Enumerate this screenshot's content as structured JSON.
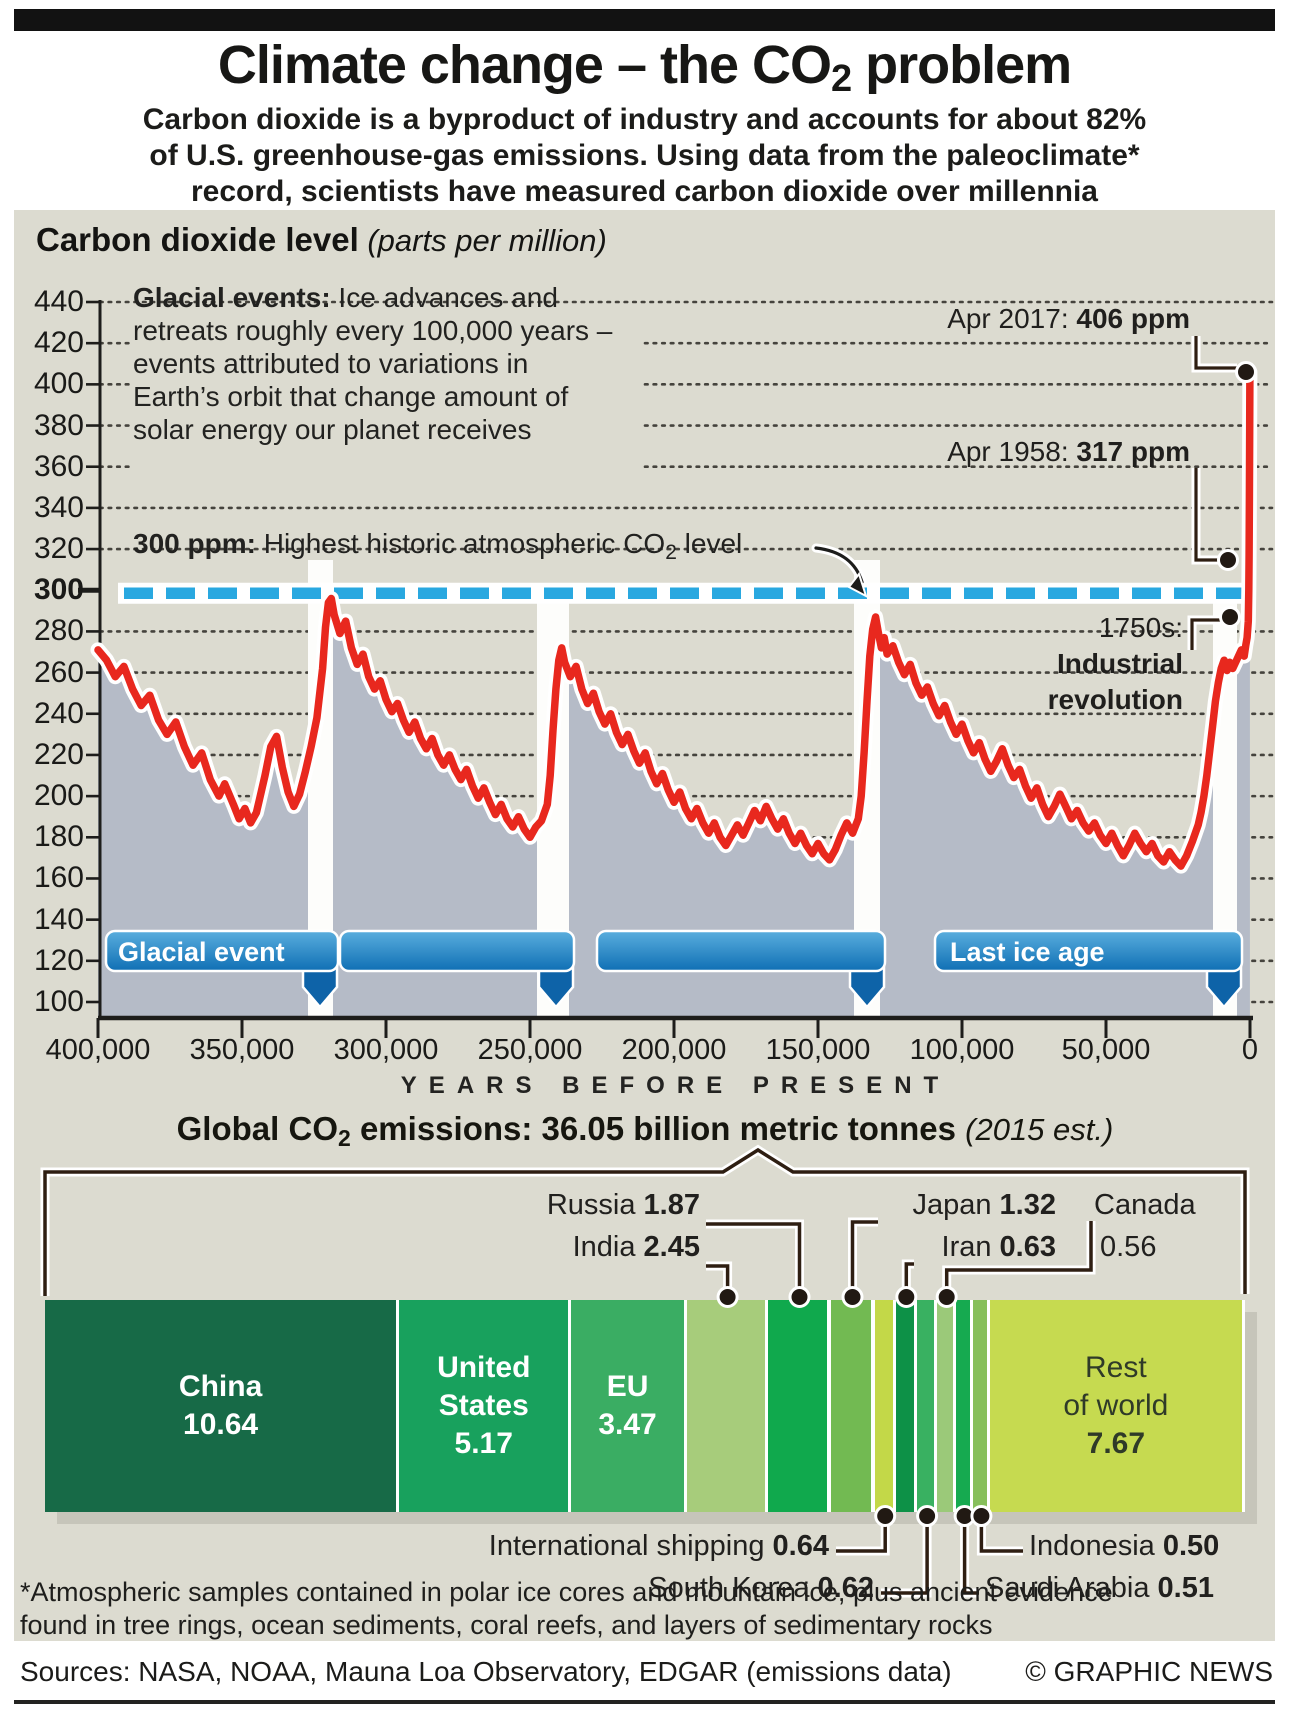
{
  "header": {
    "title_pre": "Climate change – the CO",
    "title_sub": "2",
    "title_post": " problem",
    "subtitle_lines": [
      "Carbon dioxide is a byproduct of industry and accounts for about 82%",
      "of U.S. greenhouse-gas emissions. Using data from the paleoclimate*",
      "record, scientists have measured carbon dioxide over millennia"
    ]
  },
  "co2chart": {
    "heading": "Carbon dioxide level",
    "heading_note": " (parts per million)",
    "glacial_note_bold": "Glacial events:",
    "glacial_note_line1_rest": " Ice advances and",
    "glacial_note_lines": [
      "retreats roughly every 100,000 years –",
      "events attributed to variations in",
      "Earth’s orbit that change amount of",
      "solar energy our planet receives"
    ],
    "limit_bold": "300 ppm:",
    "limit_mid": " Highest historic atmospheric CO",
    "limit_sub": "2",
    "limit_post": " level",
    "apr2017_label": "Apr 2017: ",
    "apr2017_value": "406 ppm",
    "apr1958_label": "Apr 1958: ",
    "apr1958_value": "317 ppm",
    "industrial_line1": "1750s:",
    "industrial_line2": "Industrial",
    "industrial_line3": "revolution",
    "x_axis_label": "YEARS BEFORE PRESENT"
  },
  "emissions": {
    "heading_pre": "Global CO",
    "heading_sub": "2",
    "heading_post": " emissions: 36.05 billion metric tonnes ",
    "heading_note": "(2015 est.)"
  },
  "footnote_lines": [
    "*Atmospheric samples contained in polar ice cores and mountain ice, plus ancient evidence",
    "found in tree rings, ocean sediments, coral reefs, and layers of sedimentary rocks"
  ],
  "footer": {
    "sources": "Sources: NASA, NOAA, Mauna Loa Observatory, EDGAR (emissions data)",
    "credit": "© GRAPHIC NEWS"
  },
  "chart_data": [
    {
      "type": "line",
      "title": "Carbon dioxide level (parts per million)",
      "xlabel": "YEARS BEFORE PRESENT",
      "ylabel": "CO2 parts per million",
      "x_range_years_before_present": [
        400000,
        0
      ],
      "ylim": [
        100,
        440
      ],
      "y_ticks": [
        440,
        420,
        400,
        380,
        360,
        340,
        320,
        300,
        280,
        260,
        240,
        220,
        200,
        180,
        160,
        140,
        120,
        100
      ],
      "x_ticks": [
        "400,000",
        "350,000",
        "300,000",
        "250,000",
        "200,000",
        "150,000",
        "100,000",
        "50,000",
        "0"
      ],
      "grid": "dotted horizontal",
      "reference_line": {
        "value": 300,
        "label": "300 ppm: Highest historic atmospheric CO2 level",
        "color": "#29a8e0"
      },
      "annotations": [
        {
          "label": "Apr 2017",
          "value_ppm": 406
        },
        {
          "label": "Apr 1958",
          "value_ppm": 317
        },
        {
          "label": "1750s: Industrial revolution",
          "value_ppm": 285
        }
      ],
      "era_banners": [
        {
          "label": "Glacial event"
        },
        {
          "label": ""
        },
        {
          "label": ""
        },
        {
          "label": "Last ice age"
        }
      ],
      "series_name": "CO2 level (ppm) vs thousands of years before present",
      "points": [
        [
          400,
          271
        ],
        [
          397,
          266
        ],
        [
          394,
          258
        ],
        [
          391,
          263
        ],
        [
          388,
          252
        ],
        [
          385,
          244
        ],
        [
          382,
          249
        ],
        [
          379,
          237
        ],
        [
          376,
          230
        ],
        [
          373,
          236
        ],
        [
          370,
          224
        ],
        [
          367,
          215
        ],
        [
          364,
          221
        ],
        [
          361,
          208
        ],
        [
          358,
          200
        ],
        [
          356,
          206
        ],
        [
          353,
          196
        ],
        [
          351,
          189
        ],
        [
          349,
          194
        ],
        [
          347,
          187
        ],
        [
          345,
          192
        ],
        [
          344,
          198
        ],
        [
          342,
          210
        ],
        [
          340,
          224
        ],
        [
          338,
          229
        ],
        [
          336,
          214
        ],
        [
          334,
          202
        ],
        [
          332,
          195
        ],
        [
          330,
          201
        ],
        [
          328,
          212
        ],
        [
          326,
          224
        ],
        [
          324,
          238
        ],
        [
          322,
          262
        ],
        [
          321,
          282
        ],
        [
          320,
          294
        ],
        [
          319,
          296
        ],
        [
          318,
          288
        ],
        [
          316,
          279
        ],
        [
          314,
          285
        ],
        [
          312,
          272
        ],
        [
          310,
          264
        ],
        [
          308,
          269
        ],
        [
          306,
          258
        ],
        [
          304,
          252
        ],
        [
          302,
          256
        ],
        [
          300,
          247
        ],
        [
          298,
          241
        ],
        [
          296,
          245
        ],
        [
          294,
          237
        ],
        [
          292,
          231
        ],
        [
          290,
          236
        ],
        [
          288,
          228
        ],
        [
          286,
          223
        ],
        [
          284,
          228
        ],
        [
          282,
          220
        ],
        [
          280,
          215
        ],
        [
          278,
          220
        ],
        [
          276,
          213
        ],
        [
          274,
          208
        ],
        [
          272,
          213
        ],
        [
          270,
          205
        ],
        [
          268,
          199
        ],
        [
          266,
          204
        ],
        [
          264,
          197
        ],
        [
          262,
          191
        ],
        [
          260,
          196
        ],
        [
          258,
          189
        ],
        [
          256,
          185
        ],
        [
          254,
          190
        ],
        [
          252,
          184
        ],
        [
          250,
          180
        ],
        [
          248,
          185
        ],
        [
          246,
          188
        ],
        [
          244,
          196
        ],
        [
          243,
          210
        ],
        [
          242,
          232
        ],
        [
          241,
          252
        ],
        [
          240,
          266
        ],
        [
          239,
          272
        ],
        [
          238,
          265
        ],
        [
          236,
          258
        ],
        [
          234,
          263
        ],
        [
          232,
          252
        ],
        [
          230,
          245
        ],
        [
          228,
          250
        ],
        [
          226,
          241
        ],
        [
          224,
          235
        ],
        [
          222,
          240
        ],
        [
          220,
          231
        ],
        [
          218,
          225
        ],
        [
          216,
          230
        ],
        [
          214,
          222
        ],
        [
          212,
          216
        ],
        [
          210,
          221
        ],
        [
          208,
          212
        ],
        [
          206,
          206
        ],
        [
          204,
          211
        ],
        [
          202,
          203
        ],
        [
          200,
          197
        ],
        [
          198,
          202
        ],
        [
          196,
          194
        ],
        [
          194,
          189
        ],
        [
          192,
          194
        ],
        [
          190,
          187
        ],
        [
          188,
          182
        ],
        [
          186,
          187
        ],
        [
          184,
          180
        ],
        [
          182,
          176
        ],
        [
          180,
          181
        ],
        [
          178,
          186
        ],
        [
          176,
          181
        ],
        [
          174,
          187
        ],
        [
          172,
          193
        ],
        [
          170,
          188
        ],
        [
          168,
          195
        ],
        [
          166,
          189
        ],
        [
          164,
          184
        ],
        [
          162,
          189
        ],
        [
          160,
          182
        ],
        [
          158,
          177
        ],
        [
          156,
          182
        ],
        [
          154,
          176
        ],
        [
          152,
          172
        ],
        [
          150,
          177
        ],
        [
          148,
          172
        ],
        [
          146,
          169
        ],
        [
          144,
          174
        ],
        [
          142,
          181
        ],
        [
          140,
          187
        ],
        [
          138,
          182
        ],
        [
          136,
          189
        ],
        [
          135,
          200
        ],
        [
          134,
          221
        ],
        [
          133,
          246
        ],
        [
          132,
          268
        ],
        [
          131,
          281
        ],
        [
          130,
          287
        ],
        [
          129,
          279
        ],
        [
          128,
          272
        ],
        [
          127,
          277
        ],
        [
          126,
          269
        ],
        [
          124,
          273
        ],
        [
          122,
          265
        ],
        [
          120,
          259
        ],
        [
          118,
          264
        ],
        [
          116,
          255
        ],
        [
          114,
          249
        ],
        [
          112,
          253
        ],
        [
          110,
          245
        ],
        [
          108,
          239
        ],
        [
          106,
          244
        ],
        [
          104,
          236
        ],
        [
          102,
          230
        ],
        [
          100,
          235
        ],
        [
          98,
          227
        ],
        [
          96,
          221
        ],
        [
          94,
          226
        ],
        [
          92,
          218
        ],
        [
          90,
          212
        ],
        [
          88,
          217
        ],
        [
          86,
          223
        ],
        [
          84,
          215
        ],
        [
          82,
          209
        ],
        [
          80,
          213
        ],
        [
          78,
          205
        ],
        [
          76,
          199
        ],
        [
          74,
          204
        ],
        [
          72,
          196
        ],
        [
          70,
          190
        ],
        [
          68,
          195
        ],
        [
          66,
          201
        ],
        [
          64,
          195
        ],
        [
          62,
          189
        ],
        [
          60,
          193
        ],
        [
          58,
          187
        ],
        [
          56,
          183
        ],
        [
          54,
          187
        ],
        [
          52,
          181
        ],
        [
          50,
          177
        ],
        [
          48,
          182
        ],
        [
          46,
          176
        ],
        [
          44,
          171
        ],
        [
          42,
          176
        ],
        [
          40,
          182
        ],
        [
          38,
          177
        ],
        [
          36,
          173
        ],
        [
          34,
          177
        ],
        [
          32,
          171
        ],
        [
          30,
          168
        ],
        [
          28,
          173
        ],
        [
          26,
          169
        ],
        [
          24,
          166
        ],
        [
          22,
          171
        ],
        [
          20,
          178
        ],
        [
          18,
          186
        ],
        [
          17,
          192
        ],
        [
          16,
          200
        ],
        [
          15,
          210
        ],
        [
          14,
          222
        ],
        [
          13,
          234
        ],
        [
          12,
          246
        ],
        [
          11,
          255
        ],
        [
          10,
          262
        ],
        [
          9,
          266
        ],
        [
          8,
          261
        ],
        [
          7,
          265
        ],
        [
          6,
          262
        ],
        [
          5,
          265
        ],
        [
          4,
          268
        ],
        [
          3,
          271
        ],
        [
          2,
          268
        ],
        [
          1.5,
          273
        ],
        [
          1,
          277
        ],
        [
          0.8,
          281
        ],
        [
          0.6,
          285
        ],
        [
          0.4,
          300
        ],
        [
          0.3,
          317
        ],
        [
          0.2,
          345
        ],
        [
          0.1,
          380
        ],
        [
          0.05,
          406
        ]
      ]
    },
    {
      "type": "bar",
      "stacked": true,
      "orientation": "horizontal",
      "title": "Global CO2 emissions: 36.05 billion metric tonnes (2015 est.)",
      "unit": "billion metric tonnes",
      "total": 36.05,
      "segments": [
        {
          "name": "China",
          "value": 10.64,
          "color": "#176a47",
          "label_lines": [
            "China",
            "10.64"
          ]
        },
        {
          "name": "United States",
          "value": 5.17,
          "color": "#18a15d",
          "label_lines": [
            "United",
            "States",
            "5.17"
          ]
        },
        {
          "name": "EU",
          "value": 3.47,
          "color": "#3aad63",
          "label_lines": [
            "EU",
            "3.47"
          ]
        },
        {
          "name": "India",
          "value": 2.45,
          "color": "#a7cc7b"
        },
        {
          "name": "Russia",
          "value": 1.87,
          "color": "#10a94d"
        },
        {
          "name": "Japan",
          "value": 1.32,
          "color": "#72ba52"
        },
        {
          "name": "International shipping",
          "value": 0.64,
          "color": "#c3d848"
        },
        {
          "name": "Iran",
          "value": 0.63,
          "color": "#0d9147"
        },
        {
          "name": "South Korea",
          "value": 0.62,
          "color": "#39b161"
        },
        {
          "name": "Canada",
          "value": 0.56,
          "color": "#9bc979"
        },
        {
          "name": "Saudi Arabia",
          "value": 0.51,
          "color": "#16aa50"
        },
        {
          "name": "Indonesia",
          "value": 0.5,
          "color": "#87bf5b"
        },
        {
          "name": "Rest of world",
          "value": 7.67,
          "color": "#c6da50",
          "label_lines": [
            "Rest",
            "of world",
            "7.67"
          ],
          "dark_label": true
        }
      ],
      "callouts": [
        {
          "name": "Russia",
          "value": "1.87"
        },
        {
          "name": "India",
          "value": "2.45"
        },
        {
          "name": "Japan",
          "value": "1.32"
        },
        {
          "name": "Iran",
          "value": "0.63"
        },
        {
          "name": "Canada",
          "value": "0.56"
        },
        {
          "name": "International shipping",
          "value": "0.64"
        },
        {
          "name": "South Korea",
          "value": "0.62"
        },
        {
          "name": "Saudi Arabia",
          "value": "0.51"
        },
        {
          "name": "Indonesia",
          "value": "0.50"
        }
      ]
    }
  ]
}
